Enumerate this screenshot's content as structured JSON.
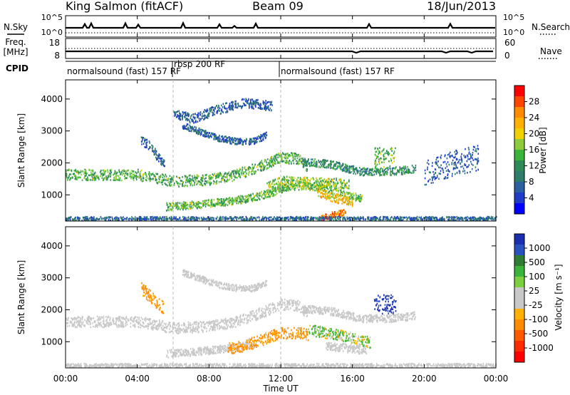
{
  "header": {
    "station": "King Salmon (fitACF)",
    "beam": "Beam 09",
    "date": "18/Jun/2013"
  },
  "top_panels": {
    "nsky": {
      "label": "N.Sky",
      "ticks_left": [
        "10^5",
        "10^0"
      ]
    },
    "nsearch": {
      "label": "N.Search",
      "ticks_right": [
        "10^5",
        "10^0"
      ]
    },
    "freq": {
      "label_top": "Freq.",
      "label_bottom": "[MHz]",
      "ticks_left": [
        "18",
        "8"
      ]
    },
    "nave": {
      "label": "Nave",
      "ticks_right": [
        "60",
        "0"
      ]
    },
    "cpid": {
      "label": "CPID",
      "segments": [
        {
          "text": "normalsound (fast) 157 RF",
          "start_ut": 0.0
        },
        {
          "text": "rbsp 200 RF",
          "start_ut": 6.0
        },
        {
          "text": "normalsound (fast) 157 RF",
          "start_ut": 12.0
        }
      ]
    }
  },
  "x_axis": {
    "label": "Time UT",
    "ticks": [
      "00:00",
      "04:00",
      "08:00",
      "12:00",
      "16:00",
      "20:00",
      "00:00"
    ]
  },
  "colorbars": {
    "power": {
      "label": "Power [dB]",
      "ticks": [
        "28",
        "24",
        "20",
        "16",
        "12",
        "8",
        "4"
      ],
      "colors": [
        "#ff0000",
        "#ff4500",
        "#ff8c00",
        "#ffb000",
        "#f0d000",
        "#8ccc3c",
        "#3cb43c",
        "#2e8b57",
        "#2e7d6a",
        "#2a5fa0",
        "#1e3cc8",
        "#0000ff"
      ]
    },
    "velocity": {
      "label": "Velocity [m s⁻¹]",
      "ticks": [
        "1000",
        "500",
        "100",
        "25",
        "-25",
        "-100",
        "-500",
        "-1000"
      ],
      "colors": [
        "#1a2fb0",
        "#2a52be",
        "#2e7d32",
        "#3cb43c",
        "#7cd040",
        "#c8c8c8",
        "#c8c8c8",
        "#ffb000",
        "#ff8c00",
        "#ff5a00",
        "#ff2a00",
        "#ff0000"
      ]
    }
  },
  "chart_data": [
    {
      "type": "heatmap",
      "quantity": "Power",
      "ylabel": "Slant Range [km]",
      "xlabel": "",
      "xlim_ut_hours": [
        0,
        24
      ],
      "ylim_km": [
        180,
        4600
      ],
      "y_ticks": [
        1000,
        2000,
        3000,
        4000
      ],
      "color_range_db": [
        0,
        30
      ],
      "scatter_bands": [
        {
          "ut": [
            0.0,
            2.0,
            4.0,
            6.0,
            8.0,
            9.5,
            11.0,
            12.0,
            13.0,
            13.5
          ],
          "km": [
            1650,
            1650,
            1650,
            1450,
            1500,
            1650,
            1950,
            2200,
            2150,
            1900
          ],
          "width_km": 170,
          "db": 13
        },
        {
          "ut": [
            13.2,
            14.5,
            15.0,
            15.7,
            16.5,
            17.8,
            19.0,
            19.5
          ],
          "km": [
            2050,
            2000,
            1950,
            1850,
            1750,
            1750,
            1800,
            1850
          ],
          "width_km": 120,
          "db": 10
        },
        {
          "ut": [
            5.6,
            7.0,
            8.0,
            9.5,
            10.5,
            11.5,
            12.5,
            13.5,
            14.5,
            15.5,
            16.5
          ],
          "km": [
            650,
            700,
            750,
            850,
            950,
            1100,
            1300,
            1300,
            1200,
            1050,
            900
          ],
          "width_km": 120,
          "db": 14
        },
        {
          "ut": [
            11.2,
            12.0,
            13.0,
            14.0,
            15.0,
            15.8
          ],
          "km": [
            1250,
            1450,
            1450,
            1400,
            1400,
            1350
          ],
          "width_km": 150,
          "db": 16
        },
        {
          "ut": [
            14.0,
            14.6,
            15.3,
            16.0
          ],
          "km": [
            1100,
            1000,
            880,
            800
          ],
          "width_km": 140,
          "db": 20
        },
        {
          "ut": [
            14.2,
            14.6,
            15.1,
            15.6
          ],
          "km": [
            300,
            350,
            420,
            500
          ],
          "width_km": 100,
          "db": 26
        },
        {
          "ut": [
            17.2,
            17.6,
            18.0,
            18.4
          ],
          "km": [
            2200,
            2200,
            2200,
            2200
          ],
          "width_km": 300,
          "db": 14
        },
        {
          "ut": [
            4.2,
            4.6,
            5.0,
            5.5
          ],
          "km": [
            2700,
            2600,
            2300,
            2000
          ],
          "width_km": 150,
          "db": 6
        },
        {
          "ut": [
            6.5,
            7.5,
            8.5,
            9.5,
            10.5,
            11.2
          ],
          "km": [
            3200,
            3000,
            2800,
            2700,
            2700,
            2900
          ],
          "width_km": 100,
          "db": 5
        },
        {
          "ut": [
            6.0,
            7.0,
            8.5,
            10.0,
            11.5
          ],
          "km": [
            3600,
            3400,
            3700,
            3900,
            3800
          ],
          "width_km": 150,
          "db": 5
        },
        {
          "ut": [
            0.0,
            6.0,
            12.0,
            18.0,
            24.0
          ],
          "km": [
            250,
            250,
            250,
            250,
            250
          ],
          "width_km": 90,
          "db": 6
        },
        {
          "ut": [
            20.0,
            21.5,
            23.0
          ],
          "km": [
            1700,
            2000,
            2200
          ],
          "width_km": 400,
          "db": 4
        }
      ]
    },
    {
      "type": "heatmap",
      "quantity": "Velocity",
      "ylabel": "Slant Range [km]",
      "xlabel": "Time UT",
      "xlim_ut_hours": [
        0,
        24
      ],
      "ylim_km": [
        180,
        4600
      ],
      "y_ticks": [
        1000,
        2000,
        3000,
        4000
      ],
      "scatter_bands": [
        {
          "ut": [
            0.0,
            2.0,
            4.0,
            6.0,
            8.0,
            9.5,
            11.0,
            12.0,
            13.0,
            13.5
          ],
          "km": [
            1650,
            1650,
            1650,
            1450,
            1500,
            1650,
            1950,
            2200,
            2150,
            1900
          ],
          "width_km": 170,
          "vel": 0
        },
        {
          "ut": [
            13.2,
            14.5,
            15.0,
            15.7,
            16.5,
            17.8,
            19.0,
            19.5
          ],
          "km": [
            2050,
            2000,
            1950,
            1850,
            1750,
            1750,
            1800,
            1850
          ],
          "width_km": 120,
          "vel": 0
        },
        {
          "ut": [
            5.6,
            7.0,
            8.0,
            9.5,
            10.5
          ],
          "km": [
            650,
            700,
            750,
            850,
            950
          ],
          "width_km": 120,
          "vel": 0
        },
        {
          "ut": [
            9.0,
            10.0,
            11.0,
            12.0,
            13.0,
            13.5
          ],
          "km": [
            800,
            900,
            1100,
            1300,
            1300,
            1250
          ],
          "width_km": 180,
          "vel": -150
        },
        {
          "ut": [
            13.5,
            14.5,
            15.5,
            16.5,
            17.0
          ],
          "km": [
            1400,
            1300,
            1200,
            1050,
            1000
          ],
          "width_km": 170,
          "vel": 60
        },
        {
          "ut": [
            14.5,
            15.2,
            16.0,
            16.8
          ],
          "km": [
            900,
            850,
            800,
            750
          ],
          "width_km": 130,
          "vel": 0
        },
        {
          "ut": [
            17.2,
            17.6,
            18.0,
            18.4
          ],
          "km": [
            2200,
            2200,
            2200,
            2200
          ],
          "width_km": 300,
          "vel": 800
        },
        {
          "ut": [
            4.2,
            4.6,
            5.0,
            5.5
          ],
          "km": [
            2700,
            2500,
            2300,
            2050
          ],
          "width_km": 200,
          "vel": -200
        },
        {
          "ut": [
            6.5,
            7.5,
            8.5,
            9.5,
            10.5,
            11.2
          ],
          "km": [
            3200,
            3000,
            2800,
            2700,
            2700,
            2900
          ],
          "width_km": 100,
          "vel": 0
        },
        {
          "ut": [
            0.0,
            6.0,
            12.0,
            18.0,
            24.0
          ],
          "km": [
            250,
            250,
            250,
            250,
            250
          ],
          "width_km": 90,
          "vel": 0
        }
      ]
    }
  ]
}
